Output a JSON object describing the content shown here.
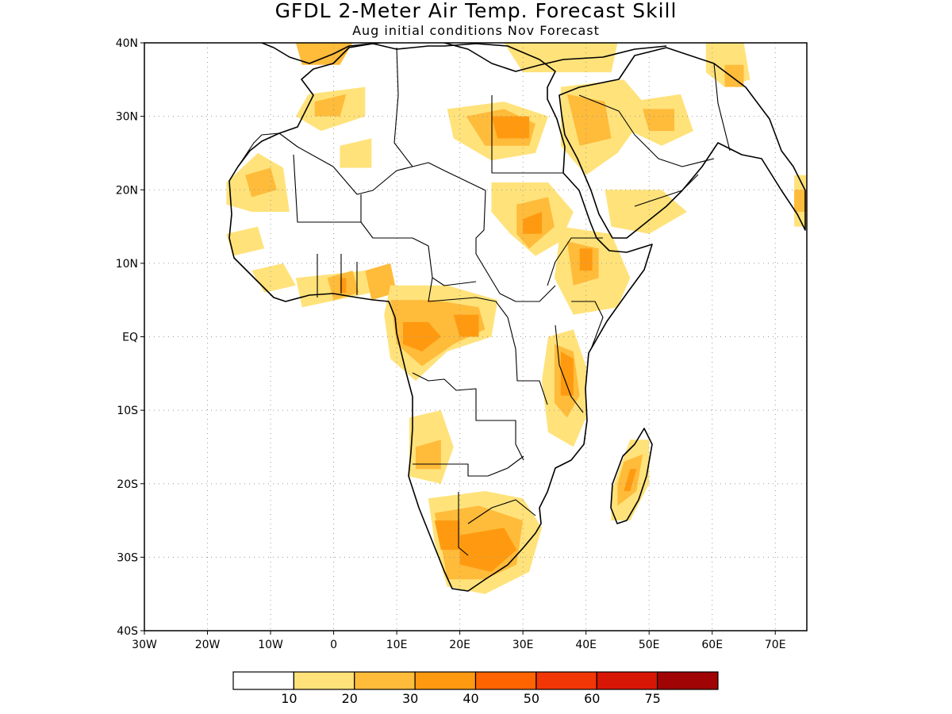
{
  "header": {
    "title": "GFDL 2-Meter Air Temp. Forecast Skill",
    "subtitle": "Aug initial conditions  Nov Forecast"
  },
  "map": {
    "lon_range": [
      -30,
      75
    ],
    "lat_range": [
      -40,
      40
    ],
    "lon_ticks": [
      {
        "value": -30,
        "label": "30W"
      },
      {
        "value": -20,
        "label": "20W"
      },
      {
        "value": -10,
        "label": "10W"
      },
      {
        "value": 0,
        "label": "0"
      },
      {
        "value": 10,
        "label": "10E"
      },
      {
        "value": 20,
        "label": "20E"
      },
      {
        "value": 30,
        "label": "30E"
      },
      {
        "value": 40,
        "label": "40E"
      },
      {
        "value": 50,
        "label": "50E"
      },
      {
        "value": 60,
        "label": "60E"
      },
      {
        "value": 70,
        "label": "70E"
      }
    ],
    "lat_ticks": [
      {
        "value": 40,
        "label": "40N"
      },
      {
        "value": 30,
        "label": "30N"
      },
      {
        "value": 20,
        "label": "20N"
      },
      {
        "value": 10,
        "label": "10N"
      },
      {
        "value": 0,
        "label": "EQ"
      },
      {
        "value": -10,
        "label": "10S"
      },
      {
        "value": -20,
        "label": "20S"
      },
      {
        "value": -30,
        "label": "30S"
      },
      {
        "value": -40,
        "label": "40S"
      }
    ],
    "grid": true
  },
  "colorbar": {
    "colors": [
      "#ffffff",
      "#ffe27a",
      "#ffbb3a",
      "#ff9a10",
      "#ff6400",
      "#f23606",
      "#d81606",
      "#a00404"
    ],
    "labels": [
      "10",
      "20",
      "30",
      "40",
      "50",
      "60",
      "75"
    ]
  },
  "skill_regions": [
    {
      "level": 1,
      "pts": [
        [
          -4,
          33
        ],
        [
          5,
          34
        ],
        [
          5,
          30
        ],
        [
          -2,
          28
        ],
        [
          -6,
          30
        ]
      ]
    },
    {
      "level": 2,
      "pts": [
        [
          -3,
          32
        ],
        [
          2,
          33
        ],
        [
          1,
          30
        ],
        [
          -3,
          30
        ]
      ]
    },
    {
      "level": 1,
      "pts": [
        [
          1,
          26
        ],
        [
          6,
          27
        ],
        [
          6,
          23
        ],
        [
          1,
          23
        ]
      ]
    },
    {
      "level": 1,
      "pts": [
        [
          -17,
          21
        ],
        [
          -12,
          25
        ],
        [
          -8,
          23
        ],
        [
          -7,
          17
        ],
        [
          -13,
          17
        ],
        [
          -17,
          18
        ]
      ]
    },
    {
      "level": 2,
      "pts": [
        [
          -14,
          22
        ],
        [
          -10,
          23
        ],
        [
          -9,
          20
        ],
        [
          -13,
          19
        ]
      ]
    },
    {
      "level": 1,
      "pts": [
        [
          -17,
          14
        ],
        [
          -12,
          15
        ],
        [
          -11,
          12
        ],
        [
          -16,
          11
        ]
      ]
    },
    {
      "level": 1,
      "pts": [
        [
          -13,
          9
        ],
        [
          -8,
          10
        ],
        [
          -6,
          7
        ],
        [
          -11,
          6
        ]
      ]
    },
    {
      "level": 1,
      "pts": [
        [
          -6,
          8
        ],
        [
          5,
          9
        ],
        [
          6,
          6
        ],
        [
          -5,
          4
        ]
      ]
    },
    {
      "level": 2,
      "pts": [
        [
          -1,
          8
        ],
        [
          3,
          9
        ],
        [
          4,
          6
        ],
        [
          0,
          5
        ]
      ]
    },
    {
      "level": 2,
      "pts": [
        [
          5,
          9
        ],
        [
          9,
          10
        ],
        [
          10,
          6
        ],
        [
          6,
          5
        ]
      ]
    },
    {
      "level": 3,
      "pts": [
        [
          1,
          8
        ],
        [
          2,
          8
        ],
        [
          2,
          6
        ],
        [
          1,
          6
        ]
      ]
    },
    {
      "level": 1,
      "pts": [
        [
          18,
          31
        ],
        [
          27,
          32
        ],
        [
          34,
          30
        ],
        [
          32,
          25
        ],
        [
          25,
          24
        ],
        [
          19,
          27
        ]
      ]
    },
    {
      "level": 2,
      "pts": [
        [
          21,
          30
        ],
        [
          27,
          31
        ],
        [
          32,
          29
        ],
        [
          31,
          26
        ],
        [
          24,
          26
        ]
      ]
    },
    {
      "level": 3,
      "pts": [
        [
          25,
          30
        ],
        [
          31,
          30
        ],
        [
          31,
          27
        ],
        [
          26,
          27
        ]
      ]
    },
    {
      "level": 1,
      "pts": [
        [
          25,
          21
        ],
        [
          34,
          21
        ],
        [
          38,
          17
        ],
        [
          36,
          13
        ],
        [
          32,
          11
        ],
        [
          28,
          14
        ],
        [
          25,
          17
        ]
      ]
    },
    {
      "level": 2,
      "pts": [
        [
          29,
          18
        ],
        [
          34,
          19
        ],
        [
          35,
          15
        ],
        [
          31,
          12
        ],
        [
          29,
          14
        ]
      ]
    },
    {
      "level": 3,
      "pts": [
        [
          30,
          16
        ],
        [
          33,
          17
        ],
        [
          33,
          14
        ],
        [
          30,
          14
        ]
      ]
    },
    {
      "level": 1,
      "pts": [
        [
          36,
          15
        ],
        [
          44,
          14
        ],
        [
          47,
          8
        ],
        [
          45,
          4
        ],
        [
          38,
          3
        ],
        [
          35,
          8
        ]
      ]
    },
    {
      "level": 2,
      "pts": [
        [
          37,
          13
        ],
        [
          42,
          12
        ],
        [
          42,
          8
        ],
        [
          38,
          7
        ]
      ]
    },
    {
      "level": 3,
      "pts": [
        [
          39,
          12
        ],
        [
          41,
          12
        ],
        [
          41,
          9
        ],
        [
          39,
          9
        ]
      ]
    },
    {
      "level": 1,
      "pts": [
        [
          36,
          34
        ],
        [
          46,
          35
        ],
        [
          50,
          31
        ],
        [
          45,
          25
        ],
        [
          40,
          22
        ],
        [
          36,
          26
        ]
      ]
    },
    {
      "level": 2,
      "pts": [
        [
          37,
          33
        ],
        [
          43,
          32
        ],
        [
          44,
          27
        ],
        [
          39,
          26
        ]
      ]
    },
    {
      "level": 1,
      "pts": [
        [
          47,
          32
        ],
        [
          55,
          33
        ],
        [
          57,
          28
        ],
        [
          52,
          26
        ],
        [
          47,
          28
        ]
      ]
    },
    {
      "level": 2,
      "pts": [
        [
          49,
          31
        ],
        [
          54,
          31
        ],
        [
          54,
          28
        ],
        [
          50,
          28
        ]
      ]
    },
    {
      "level": 1,
      "pts": [
        [
          43,
          20
        ],
        [
          52,
          20
        ],
        [
          56,
          17
        ],
        [
          50,
          14
        ],
        [
          44,
          15
        ]
      ]
    },
    {
      "level": 1,
      "pts": [
        [
          73,
          22
        ],
        [
          75,
          22
        ],
        [
          75,
          15
        ],
        [
          73,
          15
        ]
      ]
    },
    {
      "level": 2,
      "pts": [
        [
          73,
          20
        ],
        [
          75,
          20
        ],
        [
          75,
          17
        ],
        [
          73,
          17
        ]
      ]
    },
    {
      "level": 2,
      "pts": [
        [
          -6,
          40
        ],
        [
          3,
          40
        ],
        [
          1,
          37
        ],
        [
          -5,
          37
        ]
      ]
    },
    {
      "level": 1,
      "pts": [
        [
          27,
          40
        ],
        [
          45,
          40
        ],
        [
          44,
          36
        ],
        [
          30,
          36
        ]
      ]
    },
    {
      "level": 1,
      "pts": [
        [
          59,
          40
        ],
        [
          65,
          40
        ],
        [
          66,
          35
        ],
        [
          62,
          34
        ],
        [
          59,
          36
        ]
      ]
    },
    {
      "level": 2,
      "pts": [
        [
          62,
          37
        ],
        [
          65,
          37
        ],
        [
          65,
          34
        ],
        [
          62,
          34
        ]
      ]
    },
    {
      "level": 1,
      "pts": [
        [
          9,
          7
        ],
        [
          18,
          7
        ],
        [
          26,
          5
        ],
        [
          25,
          0
        ],
        [
          18,
          -2
        ],
        [
          13,
          -6
        ],
        [
          9,
          -3
        ],
        [
          8,
          3
        ]
      ]
    },
    {
      "level": 2,
      "pts": [
        [
          9,
          5
        ],
        [
          16,
          5
        ],
        [
          23,
          4
        ],
        [
          24,
          1
        ],
        [
          19,
          -1
        ],
        [
          14,
          -4
        ],
        [
          10,
          -1
        ]
      ]
    },
    {
      "level": 3,
      "pts": [
        [
          11,
          2
        ],
        [
          15,
          2
        ],
        [
          17,
          0
        ],
        [
          14,
          -2
        ],
        [
          11,
          -1
        ]
      ]
    },
    {
      "level": 3,
      "pts": [
        [
          19,
          3
        ],
        [
          23,
          3
        ],
        [
          23,
          0
        ],
        [
          20,
          0
        ]
      ]
    },
    {
      "level": 1,
      "pts": [
        [
          34,
          0
        ],
        [
          38,
          1
        ],
        [
          40,
          -4
        ],
        [
          40,
          -11
        ],
        [
          38,
          -15
        ],
        [
          34,
          -13
        ],
        [
          33,
          -6
        ]
      ]
    },
    {
      "level": 2,
      "pts": [
        [
          35,
          -1
        ],
        [
          38,
          -2
        ],
        [
          39,
          -8
        ],
        [
          37,
          -11
        ],
        [
          35,
          -9
        ]
      ]
    },
    {
      "level": 3,
      "pts": [
        [
          36,
          -2
        ],
        [
          38,
          -3
        ],
        [
          38,
          -8
        ],
        [
          36,
          -8
        ]
      ]
    },
    {
      "level": 1,
      "pts": [
        [
          12,
          -11
        ],
        [
          17,
          -10
        ],
        [
          19,
          -15
        ],
        [
          17,
          -20
        ],
        [
          12,
          -19
        ]
      ]
    },
    {
      "level": 2,
      "pts": [
        [
          13,
          -15
        ],
        [
          17,
          -14
        ],
        [
          17,
          -18
        ],
        [
          13,
          -18
        ]
      ]
    },
    {
      "level": 1,
      "pts": [
        [
          15,
          -22
        ],
        [
          24,
          -21
        ],
        [
          30,
          -22
        ],
        [
          33,
          -26
        ],
        [
          31,
          -32
        ],
        [
          24,
          -35
        ],
        [
          18,
          -34
        ],
        [
          16,
          -28
        ]
      ]
    },
    {
      "level": 2,
      "pts": [
        [
          16,
          -24
        ],
        [
          23,
          -23
        ],
        [
          30,
          -25
        ],
        [
          29,
          -31
        ],
        [
          24,
          -33
        ],
        [
          18,
          -33
        ],
        [
          17,
          -28
        ]
      ]
    },
    {
      "level": 3,
      "pts": [
        [
          16,
          -25
        ],
        [
          20,
          -25
        ],
        [
          20,
          -29
        ],
        [
          17,
          -29
        ]
      ]
    },
    {
      "level": 3,
      "pts": [
        [
          20,
          -27
        ],
        [
          27,
          -26
        ],
        [
          29,
          -29
        ],
        [
          25,
          -32
        ],
        [
          20,
          -31
        ]
      ]
    },
    {
      "level": 1,
      "pts": [
        [
          47,
          -14
        ],
        [
          50,
          -14
        ],
        [
          50,
          -20
        ],
        [
          47,
          -25
        ],
        [
          44,
          -25
        ],
        [
          44,
          -21
        ]
      ]
    },
    {
      "level": 2,
      "pts": [
        [
          46,
          -17
        ],
        [
          49,
          -16
        ],
        [
          48,
          -21
        ],
        [
          45,
          -23
        ],
        [
          45,
          -20
        ]
      ]
    },
    {
      "level": 3,
      "pts": [
        [
          47,
          -18
        ],
        [
          48,
          -18
        ],
        [
          47,
          -21
        ],
        [
          46,
          -21
        ]
      ]
    }
  ]
}
